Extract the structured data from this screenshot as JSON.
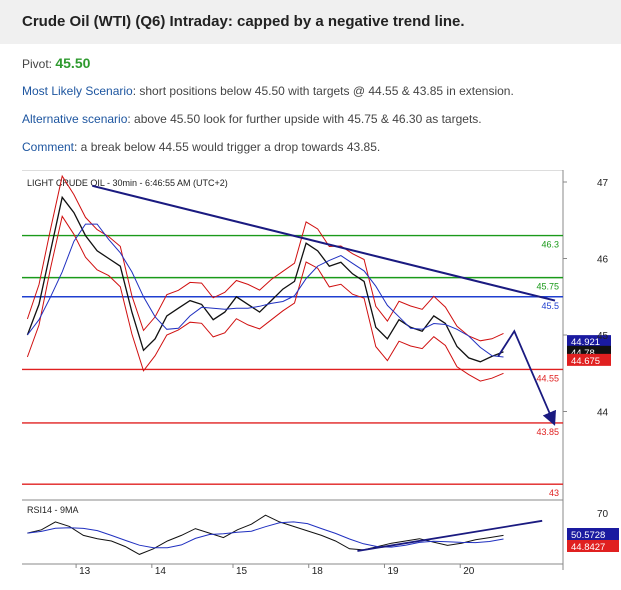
{
  "title": "Crude Oil (WTI) (Q6) Intraday: capped by a negative trend line.",
  "pivot": {
    "label": "Pivot:",
    "value": "45.50"
  },
  "scenario_main": {
    "label": "Most Likely Scenario",
    "text": ": short positions below 45.50 with targets @ 44.55 & 43.85 in extension."
  },
  "scenario_alt": {
    "label": "Alternative scenario",
    "text": ": above 45.50 look for further upside with 45.75 & 46.30 as targets."
  },
  "comment": {
    "label": "Comment",
    "text": ": a break below 44.55 would trigger a drop towards 43.85."
  },
  "chart_data": {
    "type": "line",
    "title": "LIGHT CRUDE OIL - 30min - 6:46:55 AM (UTC+2)",
    "ylim": [
      43.0,
      47.0
    ],
    "y_ticks": [
      "47",
      "46",
      "45",
      "44"
    ],
    "x_ticks": [
      "13",
      "14",
      "15",
      "18",
      "19",
      "20"
    ],
    "levels": [
      {
        "label": "46.3",
        "value": 46.3,
        "color": "#1a9a1a"
      },
      {
        "label": "45.75",
        "value": 45.75,
        "color": "#1a9a1a"
      },
      {
        "label": "45.5",
        "value": 45.5,
        "color": "#1f3fd0"
      },
      {
        "label": "44.55",
        "value": 44.55,
        "color": "#e02020"
      },
      {
        "label": "43.85",
        "value": 43.85,
        "color": "#e02020"
      },
      {
        "label": "43",
        "value": 43.05,
        "color": "#e02020"
      }
    ],
    "price_badges": [
      {
        "label": "44.921",
        "value": 44.92,
        "color": "#1a1aa0"
      },
      {
        "label": "44.78",
        "value": 44.78,
        "color": "#111111"
      },
      {
        "label": "44.675",
        "value": 44.675,
        "color": "#e02020"
      }
    ],
    "price_series": [
      45.0,
      45.4,
      46.1,
      46.8,
      46.6,
      46.3,
      46.1,
      46.0,
      45.9,
      45.3,
      44.8,
      44.95,
      45.25,
      45.35,
      45.45,
      45.4,
      45.2,
      45.3,
      45.5,
      45.4,
      45.3,
      45.45,
      45.6,
      45.7,
      46.2,
      46.1,
      45.9,
      45.95,
      45.8,
      45.7,
      45.1,
      44.95,
      45.2,
      45.1,
      45.05,
      45.25,
      45.15,
      44.85,
      44.7,
      44.65,
      44.72,
      44.78
    ],
    "trend_line": {
      "start": [
        0.13,
        46.95
      ],
      "end": [
        1.0,
        45.45
      ]
    },
    "projection": [
      [
        0.88,
        44.72
      ],
      [
        0.91,
        45.05
      ],
      [
        0.98,
        43.9
      ]
    ],
    "rsi": {
      "label": "RSI14 - 9MA",
      "ylim": [
        28,
        78
      ],
      "y_ticks": [
        "70"
      ],
      "badges": [
        {
          "label": "50.5728",
          "color": "#1a1aa0"
        },
        {
          "label": "44.8427",
          "color": "#e02020"
        }
      ],
      "series": [
        52,
        55,
        62,
        58,
        50,
        47,
        45,
        40,
        33,
        38,
        45,
        50,
        56,
        52,
        48,
        55,
        60,
        68,
        62,
        58,
        54,
        50,
        45,
        38,
        37,
        40,
        43,
        45,
        47,
        44,
        41,
        43,
        46,
        48,
        50
      ],
      "trend_line": {
        "start": [
          0.62,
          36
        ],
        "end": [
          0.98,
          63
        ]
      }
    }
  }
}
